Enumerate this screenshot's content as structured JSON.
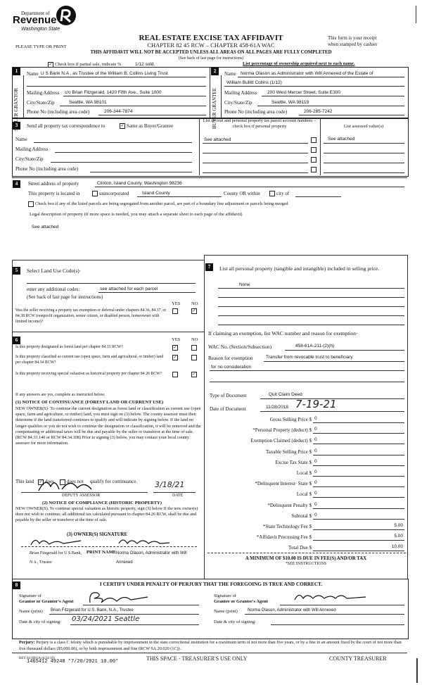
{
  "header": {
    "logo_dept": "Department of",
    "logo_name": "Revenue",
    "logo_state": "Washington State",
    "title": "REAL ESTATE EXCISE TAX AFFIDAVIT",
    "chapter": "CHAPTER 82 45 RCW – CHAPTER 458-61A WAC",
    "please": "PLEASE TYPE OR PRINT",
    "receipt1": "This form is your receipt",
    "receipt2": "when stamped by cashier",
    "warning": "THIS AFFIDAVIT WILL NOT BE ACCEPTED UNLESS ALL AREAS ON ALL PAGES ARE FULLY COMPLETED",
    "see_back": "(See back of last page for instructions)",
    "partial_label": "Check box if partial sale, indicate %",
    "partial_value": "1/12 sold.",
    "partial_checked": true,
    "last_pct": "List percentage of ownership acquired next to each name."
  },
  "s1": {
    "num": "1",
    "side": "SELLER GRANTOR",
    "name_label": "Name",
    "name": "U S Bank N.A , as Trustee of the William B. Collins Living Trust",
    "mail_label": "Mailing Address",
    "mail": "c/o Brian Fitzgerald, 1420 Fifth Ave., Suite 1000",
    "city_label": "City/State/Zip",
    "city": "Seattle, WA 98101",
    "phone_label": "Phone No (including area code)",
    "phone": "206-344-7874"
  },
  "s2": {
    "num": "2",
    "side": "BUYER GRANTEE",
    "name_label": "Name",
    "name": "Norma Olason as Administrator with Will Annexed of the Estate of",
    "name2": "William Bullitt Collins (1/12)",
    "mail_label": "Mailing Address",
    "mail": "200 West Mercer Street, Suite E300",
    "city_label": "City/State/Zip",
    "city": "Seattle, WA 98119",
    "phone_label": "Phone No (including area code)",
    "phone": "206-285-7242"
  },
  "s3": {
    "num": "3",
    "send_label": "Send all property tax correspondence to",
    "same_label": "Same as Buyer/Grantee",
    "same_checked": true,
    "name_label": "Name",
    "mail_label": "Mailing Address",
    "city_label": "City/State/Zip",
    "phone_label": "Phone No (including area code)",
    "parcel_header": "List all real and personal property tax parcel account numbers – check box if personal property",
    "assessed_header": "List assessed value(s)",
    "parcels": [
      "See attached",
      "",
      "",
      ""
    ],
    "assessed": [
      "See attached",
      "",
      "",
      ""
    ]
  },
  "s4": {
    "num": "4",
    "street_label": "Street address of property",
    "street": "Clinton, Island County, Washington 98236",
    "located_label": "This property is located in",
    "unincorporated": "unincorporated",
    "county_value": "Island County",
    "county_or": "County OR  within",
    "city_of": "city of",
    "segregate": "Check box if any of the listed parcels are being segregated from another parcel, are part of a boundary line adjustment or parcels being merged",
    "legal_label": "Legal description of property (if more space is needed, you may attach a separate sheet to each page of the affidavit)",
    "legal": "See attached"
  },
  "s5": {
    "num": "5",
    "select_label": "Select Land Use Code(s)·",
    "additional_label": "enter any additional codes:",
    "additional": "see attached for each parcel",
    "see_back": "(See back of last page for instructions)",
    "yes": "YES",
    "no": "NO",
    "q1": "Was the seller receiving a property tax exemption or deferral under chapters 84.36, 84.37, or 84.38 RCW (nonprofit organization, senior citizen, or disabled person, homeowner with limited income)?",
    "q1_answer": "no"
  },
  "s6": {
    "num": "6",
    "yes": "YES",
    "no": "NO",
    "questions": [
      {
        "text": "Is this property designated as forest land per chapter 84.33 RCW?",
        "answer": "yes"
      },
      {
        "text": "Is this property classified as current use (open space, farm and agricultural, or timber) land per chapter 84.34 RCW?",
        "answer": "yes"
      },
      {
        "text": "Is this property receiving special valuation as historical property per chapter 84 26 RCW?",
        "answer": "no"
      }
    ],
    "if_yes": "If any answers are yes, complete as instructed below.",
    "notice1_title": "(1) NOTICE OF CONTINUANCE (FOREST LAND OR CURRENT USE)",
    "notice1_text": "NEW OWNER(S)· To continue the current designation as forest land or classification as current use (open space, farm and agriculture, or timber) land, you must sign on (3) below. The county assessor must then determine if the land transferred continues to qualify and will indicate by signing below. If the land no longer qualifies or you do not wish to continue the designation or classification, it will be removed and the compensating or additional taxes will be due and payable by the seller or transferor at the time of sale. (RCW 84.33.140 or RCW 84.34.108) Prior to signing (3) below, you may contact your local county assessor for more information.",
    "this_land": "This land",
    "does": "does",
    "does_not": "does not",
    "qualify": "qualify for continuance.",
    "does_checked": true,
    "assessor_date": "3/18/21",
    "deputy_label": "DEPUTY ASSESSOR",
    "date_label": "DATE",
    "notice2_title": "(2) NOTICE OF COMPLIANCE (HISTORIC PROPERTY)",
    "notice2_text": "NEW OWNER(S). To continue special valuation as historic property, sign (3) below If the new owner(s) does not wish to continue, all additional tax calculated pursuant to chapter 84.26 RCW, shall be due and payable by the seller or transferor at the time of sale.",
    "owner_sig_label": "(3) OWNER(S) SIGNATURE",
    "signer1": "Brian Fitzgerald for U S Bank, N A , Trustee",
    "print_name_label": "PRINT NAME",
    "print_name": "Norma Olason, Administrator with Will Annexed"
  },
  "s7": {
    "num": "7",
    "label": "List all personal property (tangible and intangible) included in selling price.",
    "value": "None",
    "exemption_label": "If claiming an exemption, list WAC number and reason for exemption·",
    "wac_label": "WAC No. (Section/Subsection)",
    "wac": "458-61A-211-(2)(h)",
    "reason_label": "Reason for exemption",
    "reason1": "Transfer from revocable trust to beneficiary",
    "reason2": "for no consideration",
    "doc_type_label": "Type of Document",
    "doc_type": "Quit Claim Deed",
    "doc_date_label": "Date of Document",
    "doc_date": "11/28/2018",
    "doc_date_hand": "7-19-21",
    "fees": [
      {
        "label": "Gross Selling Price $",
        "value": "0"
      },
      {
        "label": "*Personal Property (deduct) $",
        "value": "0"
      },
      {
        "label": "Exemption Claimed (deduct) $",
        "value": "0"
      },
      {
        "label": "Taxable Selling Price $",
        "value": "0"
      },
      {
        "label": "Excise Tax  State $",
        "value": "0"
      },
      {
        "label": "Local $",
        "value": "0"
      },
      {
        "label": "*Delinquent Interest· State $",
        "value": "0"
      },
      {
        "label": "Local $",
        "value": "0"
      },
      {
        "label": "*Delinquent Penalty $",
        "value": "0"
      },
      {
        "label": "Subtotal $",
        "value": "0"
      },
      {
        "label": "*State Technology Fee $",
        "value": "5.00"
      },
      {
        "label": "*Affidavit Processing Fee $",
        "value": "5.00"
      },
      {
        "label": "Total Due $",
        "value": "10.00"
      }
    ],
    "minimum": "A MINIMUM OF $10.00 IS DUE IN FEE(S) AND/OR TAX",
    "see_instructions": "*SEE INSTRUCTIONS"
  },
  "s8": {
    "num": "8",
    "certify": "I CERTIFY UNDER PENALTY OF PERJURY THAT THE FOREGOING IS TRUE AND CORRECT.",
    "sig_grantor_label1": "Signature of",
    "sig_grantor_label2": "Grantor or Grantor's Agent",
    "sig_grantee_label1": "Signature of",
    "sig_grantee_label2": "Grantee or Grantee's Agent",
    "name_print_label": "Name (print)",
    "grantor_name": "Brian Fitzgerald for U.S. Bank, N.A., Trustee",
    "grantee_name": "Norma Olason, Administrator with Will Annexed",
    "date_city_label": "Date & city of signing:",
    "grantor_date": "03/24/2021  Seattle",
    "grantee_date": ""
  },
  "footer": {
    "perjury_label": "Perjury:",
    "perjury_text": "Perjury is a class C felony which is punishable by imprisonment in the state correctional institution for a maximum term of not more than five years, or by a fine in an amount fixed by the court of not more than five thousand dollars ($5,000.00), or by both imprisonment and fine (RCW 9A.20.020 (1C)).",
    "rev": "REV 84 0001A (6/24/19)",
    "stamp": "1465412 49248 *7/20/2021 10.00*",
    "treasurer_use": "THIS SPACE - TREASURER'S USE ONLY",
    "county_treasurer": "COUNTY TREASURER"
  }
}
